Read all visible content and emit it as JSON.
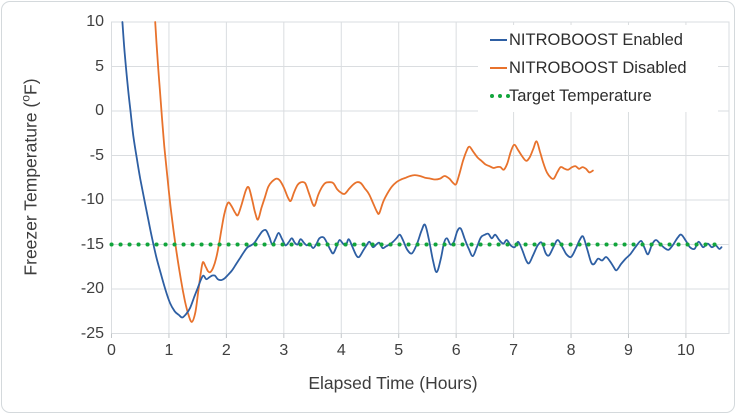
{
  "figure": {
    "xlabel": "Elapsed Time (Hours)",
    "ylabel_prefix": "Freezer Temperature (",
    "ylabel_degree": "o",
    "ylabel_suffix": "F)"
  },
  "colors": {
    "enabled_blue": "#2E5FA3",
    "disabled_orange": "#E8722C",
    "target_green": "#12A53C",
    "gridline": "#dadde0",
    "tick_stub": "#c2c6c9",
    "axis_text": "#404040"
  },
  "chart_data": {
    "type": "line",
    "title": "",
    "xlabel": "Elapsed Time (Hours)",
    "ylabel": "Freezer Temperature (oF)",
    "xlim": [
      0,
      10.75
    ],
    "ylim": [
      -25,
      10
    ],
    "x_ticks": [
      0,
      1,
      2,
      3,
      4,
      5,
      6,
      7,
      8,
      9,
      10
    ],
    "y_ticks": [
      10,
      5,
      0,
      -5,
      -10,
      -15,
      -20,
      -25
    ],
    "grid": true,
    "legend_position": "top-right-inside",
    "target_temperature": -15,
    "series": [
      {
        "name": "NITROBOOST Enabled",
        "color": "#2E5FA3",
        "style": "solid",
        "points": [
          [
            0.19,
            10
          ],
          [
            0.23,
            6.5
          ],
          [
            0.28,
            3
          ],
          [
            0.33,
            0
          ],
          [
            0.38,
            -2.8
          ],
          [
            0.44,
            -5.3
          ],
          [
            0.5,
            -7.6
          ],
          [
            0.57,
            -9.9
          ],
          [
            0.64,
            -12.2
          ],
          [
            0.71,
            -14.4
          ],
          [
            0.78,
            -16.4
          ],
          [
            0.86,
            -18.3
          ],
          [
            0.94,
            -20.1
          ],
          [
            1.02,
            -21.6
          ],
          [
            1.1,
            -22.5
          ],
          [
            1.17,
            -22.9
          ],
          [
            1.23,
            -23.2
          ],
          [
            1.3,
            -22.8
          ],
          [
            1.37,
            -22.1
          ],
          [
            1.44,
            -20.9
          ],
          [
            1.5,
            -19.9
          ],
          [
            1.56,
            -18.9
          ],
          [
            1.6,
            -18.5
          ],
          [
            1.65,
            -18.9
          ],
          [
            1.7,
            -18.7
          ],
          [
            1.75,
            -18.5
          ],
          [
            1.8,
            -18.5
          ],
          [
            1.85,
            -18.9
          ],
          [
            1.91,
            -19
          ],
          [
            1.97,
            -18.8
          ],
          [
            2.03,
            -18.4
          ],
          [
            2.1,
            -17.9
          ],
          [
            2.17,
            -17.2
          ],
          [
            2.24,
            -16.5
          ],
          [
            2.31,
            -15.8
          ],
          [
            2.37,
            -15.3
          ],
          [
            2.43,
            -15.1
          ],
          [
            2.49,
            -14.8
          ],
          [
            2.56,
            -14.1
          ],
          [
            2.63,
            -13.5
          ],
          [
            2.69,
            -13.4
          ],
          [
            2.75,
            -14.2
          ],
          [
            2.8,
            -15
          ],
          [
            2.86,
            -14.3
          ],
          [
            2.91,
            -13.7
          ],
          [
            2.97,
            -14.4
          ],
          [
            3.03,
            -15.1
          ],
          [
            3.09,
            -14.7
          ],
          [
            3.14,
            -14.3
          ],
          [
            3.19,
            -14.8
          ],
          [
            3.24,
            -15
          ],
          [
            3.29,
            -14.4
          ],
          [
            3.35,
            -14.8
          ],
          [
            3.4,
            -15.1
          ],
          [
            3.45,
            -14.9
          ],
          [
            3.51,
            -15.4
          ],
          [
            3.57,
            -14.9
          ],
          [
            3.62,
            -14.3
          ],
          [
            3.69,
            -14.2
          ],
          [
            3.75,
            -14.8
          ],
          [
            3.81,
            -15.6
          ],
          [
            3.86,
            -16
          ],
          [
            3.92,
            -15.2
          ],
          [
            3.97,
            -14.5
          ],
          [
            4.03,
            -14.9
          ],
          [
            4.08,
            -15.1
          ],
          [
            4.13,
            -14.4
          ],
          [
            4.19,
            -15.2
          ],
          [
            4.26,
            -16.2
          ],
          [
            4.31,
            -16.4
          ],
          [
            4.38,
            -15.7
          ],
          [
            4.44,
            -15.1
          ],
          [
            4.49,
            -14.7
          ],
          [
            4.55,
            -15.3
          ],
          [
            4.61,
            -15
          ],
          [
            4.66,
            -14.8
          ],
          [
            4.72,
            -15.4
          ],
          [
            4.78,
            -15.2
          ],
          [
            4.84,
            -15
          ],
          [
            4.9,
            -14.7
          ],
          [
            4.96,
            -14.3
          ],
          [
            5.02,
            -13.9
          ],
          [
            5.08,
            -14.6
          ],
          [
            5.15,
            -15.6
          ],
          [
            5.23,
            -16
          ],
          [
            5.32,
            -14.9
          ],
          [
            5.4,
            -13.4
          ],
          [
            5.46,
            -12.8
          ],
          [
            5.53,
            -14.6
          ],
          [
            5.6,
            -16.9
          ],
          [
            5.66,
            -18.1
          ],
          [
            5.73,
            -16.7
          ],
          [
            5.79,
            -14.8
          ],
          [
            5.84,
            -14.3
          ],
          [
            5.9,
            -15
          ],
          [
            5.96,
            -14.7
          ],
          [
            6.02,
            -13.5
          ],
          [
            6.08,
            -13.2
          ],
          [
            6.15,
            -14.4
          ],
          [
            6.22,
            -15.5
          ],
          [
            6.29,
            -16.3
          ],
          [
            6.36,
            -15.3
          ],
          [
            6.43,
            -14.2
          ],
          [
            6.5,
            -13.9
          ],
          [
            6.56,
            -13.8
          ],
          [
            6.62,
            -14.3
          ],
          [
            6.68,
            -13.9
          ],
          [
            6.75,
            -14.5
          ],
          [
            6.82,
            -14.9
          ],
          [
            6.88,
            -14.5
          ],
          [
            6.95,
            -15.1
          ],
          [
            7.02,
            -15.3
          ],
          [
            7.08,
            -14.7
          ],
          [
            7.15,
            -15.6
          ],
          [
            7.22,
            -16.8
          ],
          [
            7.27,
            -17.1
          ],
          [
            7.34,
            -16.2
          ],
          [
            7.42,
            -15.1
          ],
          [
            7.49,
            -14.8
          ],
          [
            7.56,
            -16
          ],
          [
            7.62,
            -16.2
          ],
          [
            7.7,
            -15.2
          ],
          [
            7.77,
            -14.5
          ],
          [
            7.85,
            -15.3
          ],
          [
            7.92,
            -16.1
          ],
          [
            8,
            -16.4
          ],
          [
            8.08,
            -15.5
          ],
          [
            8.15,
            -14.5
          ],
          [
            8.21,
            -14.1
          ],
          [
            8.28,
            -15.5
          ],
          [
            8.35,
            -17
          ],
          [
            8.4,
            -17.2
          ],
          [
            8.47,
            -16.6
          ],
          [
            8.54,
            -16.8
          ],
          [
            8.61,
            -16.4
          ],
          [
            8.68,
            -16.9
          ],
          [
            8.74,
            -17.5
          ],
          [
            8.79,
            -17.9
          ],
          [
            8.87,
            -17.2
          ],
          [
            8.95,
            -16.6
          ],
          [
            9.03,
            -16.1
          ],
          [
            9.12,
            -15.3
          ],
          [
            9.22,
            -14.6
          ],
          [
            9.28,
            -15.4
          ],
          [
            9.34,
            -16.1
          ],
          [
            9.41,
            -15
          ],
          [
            9.48,
            -14.5
          ],
          [
            9.56,
            -15
          ],
          [
            9.63,
            -15.4
          ],
          [
            9.7,
            -15.6
          ],
          [
            9.78,
            -15
          ],
          [
            9.86,
            -14.2
          ],
          [
            9.92,
            -13.9
          ],
          [
            10,
            -14.6
          ],
          [
            10.07,
            -15.3
          ],
          [
            10.15,
            -15.5
          ],
          [
            10.22,
            -14.7
          ],
          [
            10.3,
            -15.3
          ],
          [
            10.38,
            -14.9
          ],
          [
            10.45,
            -15.3
          ],
          [
            10.52,
            -15.1
          ],
          [
            10.58,
            -15.5
          ],
          [
            10.62,
            -15.3
          ]
        ]
      },
      {
        "name": "NITROBOOST Disabled",
        "color": "#E8722C",
        "style": "solid",
        "points": [
          [
            0.76,
            10
          ],
          [
            0.8,
            6
          ],
          [
            0.84,
            2.5
          ],
          [
            0.88,
            -0.8
          ],
          [
            0.92,
            -4
          ],
          [
            0.97,
            -7.2
          ],
          [
            1.02,
            -10.3
          ],
          [
            1.08,
            -13.4
          ],
          [
            1.14,
            -16.2
          ],
          [
            1.21,
            -19
          ],
          [
            1.28,
            -21.4
          ],
          [
            1.34,
            -22.9
          ],
          [
            1.4,
            -23.7
          ],
          [
            1.46,
            -22.6
          ],
          [
            1.51,
            -20.3
          ],
          [
            1.55,
            -18.4
          ],
          [
            1.59,
            -17
          ],
          [
            1.64,
            -17.5
          ],
          [
            1.68,
            -18
          ],
          [
            1.72,
            -18.1
          ],
          [
            1.77,
            -17.6
          ],
          [
            1.82,
            -16.6
          ],
          [
            1.87,
            -15
          ],
          [
            1.92,
            -13.1
          ],
          [
            1.97,
            -11.4
          ],
          [
            2.03,
            -10.3
          ],
          [
            2.09,
            -10.7
          ],
          [
            2.15,
            -11.4
          ],
          [
            2.2,
            -11.7
          ],
          [
            2.27,
            -10.4
          ],
          [
            2.34,
            -8.9
          ],
          [
            2.39,
            -8.6
          ],
          [
            2.45,
            -10
          ],
          [
            2.5,
            -11.4
          ],
          [
            2.55,
            -12.2
          ],
          [
            2.61,
            -10.9
          ],
          [
            2.67,
            -9.7
          ],
          [
            2.73,
            -8.5
          ],
          [
            2.8,
            -7.9
          ],
          [
            2.87,
            -7.6
          ],
          [
            2.93,
            -7.8
          ],
          [
            3,
            -8.6
          ],
          [
            3.07,
            -9.7
          ],
          [
            3.12,
            -10.1
          ],
          [
            3.18,
            -9.1
          ],
          [
            3.24,
            -8.3
          ],
          [
            3.3,
            -8
          ],
          [
            3.37,
            -8.1
          ],
          [
            3.43,
            -9.1
          ],
          [
            3.5,
            -10.4
          ],
          [
            3.54,
            -10.6
          ],
          [
            3.6,
            -9.4
          ],
          [
            3.66,
            -8.6
          ],
          [
            3.72,
            -8.1
          ],
          [
            3.79,
            -8
          ],
          [
            3.86,
            -8.1
          ],
          [
            3.93,
            -8.8
          ],
          [
            4,
            -9.2
          ],
          [
            4.06,
            -9.3
          ],
          [
            4.13,
            -8.8
          ],
          [
            4.2,
            -8.3
          ],
          [
            4.27,
            -8
          ],
          [
            4.34,
            -8.1
          ],
          [
            4.41,
            -8.7
          ],
          [
            4.48,
            -9.3
          ],
          [
            4.55,
            -10.3
          ],
          [
            4.62,
            -11.3
          ],
          [
            4.66,
            -11.5
          ],
          [
            4.73,
            -10.2
          ],
          [
            4.8,
            -9.3
          ],
          [
            4.88,
            -8.5
          ],
          [
            4.96,
            -8
          ],
          [
            5.04,
            -7.7
          ],
          [
            5.12,
            -7.5
          ],
          [
            5.2,
            -7.3
          ],
          [
            5.28,
            -7.2
          ],
          [
            5.37,
            -7.3
          ],
          [
            5.46,
            -7.5
          ],
          [
            5.55,
            -7.6
          ],
          [
            5.63,
            -7.7
          ],
          [
            5.72,
            -7.6
          ],
          [
            5.8,
            -7.3
          ],
          [
            5.88,
            -7.6
          ],
          [
            5.95,
            -8.1
          ],
          [
            6,
            -8.2
          ],
          [
            6.06,
            -7
          ],
          [
            6.12,
            -5.6
          ],
          [
            6.18,
            -4.5
          ],
          [
            6.23,
            -4
          ],
          [
            6.3,
            -4.6
          ],
          [
            6.37,
            -5.2
          ],
          [
            6.44,
            -5.6
          ],
          [
            6.51,
            -6
          ],
          [
            6.58,
            -6.2
          ],
          [
            6.65,
            -6.4
          ],
          [
            6.71,
            -6.3
          ],
          [
            6.77,
            -6.3
          ],
          [
            6.83,
            -6.6
          ],
          [
            6.89,
            -5.9
          ],
          [
            6.95,
            -4.6
          ],
          [
            7.01,
            -3.8
          ],
          [
            7.08,
            -4.4
          ],
          [
            7.15,
            -5.1
          ],
          [
            7.22,
            -5.6
          ],
          [
            7.28,
            -5.2
          ],
          [
            7.34,
            -4.3
          ],
          [
            7.4,
            -3.4
          ],
          [
            7.46,
            -4.6
          ],
          [
            7.52,
            -5.9
          ],
          [
            7.58,
            -6.9
          ],
          [
            7.65,
            -7.5
          ],
          [
            7.7,
            -7.6
          ],
          [
            7.76,
            -6.9
          ],
          [
            7.82,
            -6.3
          ],
          [
            7.89,
            -6.5
          ],
          [
            7.95,
            -6.6
          ],
          [
            8.02,
            -6.3
          ],
          [
            8.08,
            -6.2
          ],
          [
            8.14,
            -6.5
          ],
          [
            8.2,
            -6.3
          ],
          [
            8.26,
            -6.5
          ],
          [
            8.32,
            -6.9
          ],
          [
            8.38,
            -6.7
          ]
        ]
      },
      {
        "name": "Target Temperature",
        "color": "#12A53C",
        "style": "dotted",
        "points": [
          [
            0,
            -15
          ],
          [
            10.55,
            -15
          ]
        ]
      }
    ]
  }
}
